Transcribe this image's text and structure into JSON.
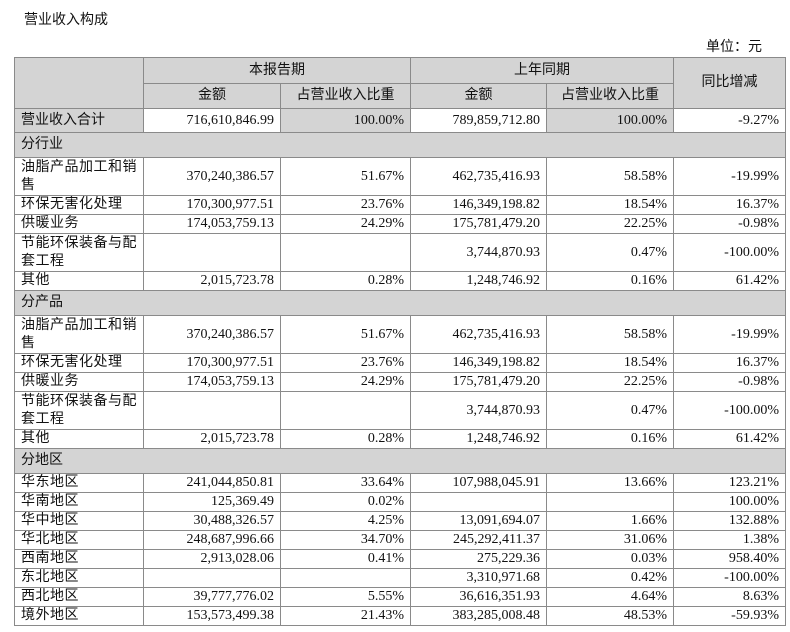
{
  "title": "营业收入构成",
  "unit": "单位：元",
  "header": {
    "current_period": "本报告期",
    "prior_period": "上年同期",
    "yoy": "同比增减",
    "amount": "金额",
    "share": "占营业收入比重"
  },
  "total": {
    "label": "营业收入合计",
    "cur_amount": "716,610,846.99",
    "cur_share": "100.00%",
    "prev_amount": "789,859,712.80",
    "prev_share": "100.00%",
    "yoy": "-9.27%"
  },
  "sections": [
    {
      "title": "分行业",
      "rows": [
        {
          "label": "油脂产品加工和销售",
          "cur_amount": "370,240,386.57",
          "cur_share": "51.67%",
          "prev_amount": "462,735,416.93",
          "prev_share": "58.58%",
          "yoy": "-19.99%"
        },
        {
          "label": "环保无害化处理",
          "cur_amount": "170,300,977.51",
          "cur_share": "23.76%",
          "prev_amount": "146,349,198.82",
          "prev_share": "18.54%",
          "yoy": "16.37%"
        },
        {
          "label": "供暖业务",
          "cur_amount": "174,053,759.13",
          "cur_share": "24.29%",
          "prev_amount": "175,781,479.20",
          "prev_share": "22.25%",
          "yoy": "-0.98%"
        },
        {
          "label": "节能环保装备与配套工程",
          "cur_amount": "",
          "cur_share": "",
          "prev_amount": "3,744,870.93",
          "prev_share": "0.47%",
          "yoy": "-100.00%"
        },
        {
          "label": "其他",
          "cur_amount": "2,015,723.78",
          "cur_share": "0.28%",
          "prev_amount": "1,248,746.92",
          "prev_share": "0.16%",
          "yoy": "61.42%"
        }
      ]
    },
    {
      "title": "分产品",
      "rows": [
        {
          "label": "油脂产品加工和销售",
          "cur_amount": "370,240,386.57",
          "cur_share": "51.67%",
          "prev_amount": "462,735,416.93",
          "prev_share": "58.58%",
          "yoy": "-19.99%"
        },
        {
          "label": "环保无害化处理",
          "cur_amount": "170,300,977.51",
          "cur_share": "23.76%",
          "prev_amount": "146,349,198.82",
          "prev_share": "18.54%",
          "yoy": "16.37%"
        },
        {
          "label": "供暖业务",
          "cur_amount": "174,053,759.13",
          "cur_share": "24.29%",
          "prev_amount": "175,781,479.20",
          "prev_share": "22.25%",
          "yoy": "-0.98%"
        },
        {
          "label": "节能环保装备与配套工程",
          "cur_amount": "",
          "cur_share": "",
          "prev_amount": "3,744,870.93",
          "prev_share": "0.47%",
          "yoy": "-100.00%"
        },
        {
          "label": "其他",
          "cur_amount": "2,015,723.78",
          "cur_share": "0.28%",
          "prev_amount": "1,248,746.92",
          "prev_share": "0.16%",
          "yoy": "61.42%"
        }
      ]
    },
    {
      "title": "分地区",
      "rows": [
        {
          "label": "华东地区",
          "cur_amount": "241,044,850.81",
          "cur_share": "33.64%",
          "prev_amount": "107,988,045.91",
          "prev_share": "13.66%",
          "yoy": "123.21%"
        },
        {
          "label": "华南地区",
          "cur_amount": "125,369.49",
          "cur_share": "0.02%",
          "prev_amount": "",
          "prev_share": "",
          "yoy": "100.00%"
        },
        {
          "label": "华中地区",
          "cur_amount": "30,488,326.57",
          "cur_share": "4.25%",
          "prev_amount": "13,091,694.07",
          "prev_share": "1.66%",
          "yoy": "132.88%"
        },
        {
          "label": "华北地区",
          "cur_amount": "248,687,996.66",
          "cur_share": "34.70%",
          "prev_amount": "245,292,411.37",
          "prev_share": "31.06%",
          "yoy": "1.38%"
        },
        {
          "label": "西南地区",
          "cur_amount": "2,913,028.06",
          "cur_share": "0.41%",
          "prev_amount": "275,229.36",
          "prev_share": "0.03%",
          "yoy": "958.40%"
        },
        {
          "label": "东北地区",
          "cur_amount": "",
          "cur_share": "",
          "prev_amount": "3,310,971.68",
          "prev_share": "0.42%",
          "yoy": "-100.00%"
        },
        {
          "label": "西北地区",
          "cur_amount": "39,777,776.02",
          "cur_share": "5.55%",
          "prev_amount": "36,616,351.93",
          "prev_share": "4.64%",
          "yoy": "8.63%"
        },
        {
          "label": "境外地区",
          "cur_amount": "153,573,499.38",
          "cur_share": "21.43%",
          "prev_amount": "383,285,008.48",
          "prev_share": "48.53%",
          "yoy": "-59.93%"
        }
      ]
    }
  ]
}
